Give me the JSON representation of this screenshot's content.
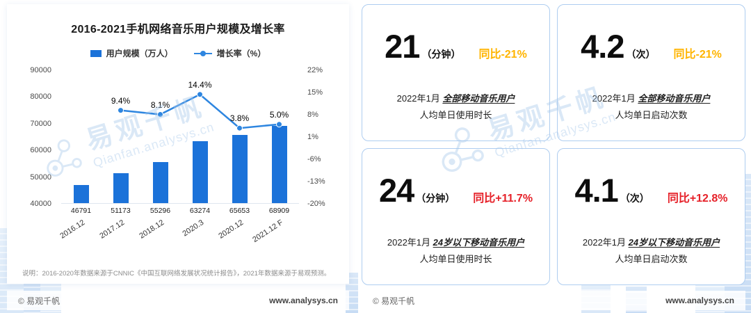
{
  "left_panel": {
    "title": "2016-2021手机网络音乐用户规模及增长率",
    "legend_bar": "用户规模（万人）",
    "legend_line": "增长率（%）",
    "note": "说明：2016-2020年数据来源于CNNIC《中国互联网络发展状况统计报告》，2021年数据来源于易观预测。"
  },
  "chart_data": {
    "type": "bar",
    "subtype": "bar+line combo with dual y-axes",
    "title": "2016-2021手机网络音乐用户规模及增长率",
    "categories": [
      "2016.12",
      "2017.12",
      "2018.12",
      "2020.3",
      "2020.12",
      "2021.12 F"
    ],
    "series": [
      {
        "name": "用户规模（万人）",
        "type": "bar",
        "axis": "left",
        "color": "#1b72d9",
        "values": [
          46791,
          51173,
          55296,
          63274,
          65653,
          68909
        ]
      },
      {
        "name": "增长率（%）",
        "type": "line",
        "axis": "right",
        "color": "#2e86e0",
        "values": [
          null,
          9.4,
          8.1,
          14.4,
          3.8,
          5.0
        ],
        "labels": [
          "",
          "9.4%",
          "8.1%",
          "14.4%",
          "3.8%",
          "5.0%"
        ]
      }
    ],
    "left_axis": {
      "min": 40000,
      "max": 90000,
      "ticks": [
        "90000",
        "80000",
        "70000",
        "60000",
        "50000",
        "40000"
      ]
    },
    "right_axis": {
      "min": -20,
      "max": 22,
      "ticks": [
        "22%",
        "15%",
        "8%",
        "1%",
        "-6%",
        "-13%",
        "-20%"
      ]
    },
    "grid": false,
    "legend_position": "top"
  },
  "stat_cards": [
    {
      "value": "21",
      "unit": "（分钟）",
      "yoy": "同比-21%",
      "yoy_color": "#ffb400",
      "line1_prefix": "2022年1月 ",
      "line1_em": "全部移动音乐用户",
      "line2": "人均单日使用时长"
    },
    {
      "value": "4.2",
      "unit": "（次）",
      "yoy": "同比-21%",
      "yoy_color": "#ffb400",
      "line1_prefix": "2022年1月 ",
      "line1_em": "全部移动音乐用户",
      "line2": "人均单日启动次数"
    },
    {
      "value": "24",
      "unit": "（分钟）",
      "yoy": "同比+11.7%",
      "yoy_color": "#e62129",
      "line1_prefix": "2022年1月 ",
      "line1_em": "24岁以下移动音乐用户",
      "line2": "人均单日使用时长"
    },
    {
      "value": "4.1",
      "unit": "（次）",
      "yoy": "同比+12.8%",
      "yoy_color": "#e62129",
      "line1_prefix": "2022年1月 ",
      "line1_em": "24岁以下移动音乐用户",
      "line2": "人均单日启动次数"
    }
  ],
  "footers": {
    "left": {
      "copyright": "© 易观千帆",
      "site": "www.analysys.cn"
    },
    "right": {
      "copyright": "© 易观千帆",
      "site": "www.analysys.cn"
    }
  },
  "watermark": {
    "cn": "易观千帆",
    "en": "Qianfan.analysys.cn"
  }
}
